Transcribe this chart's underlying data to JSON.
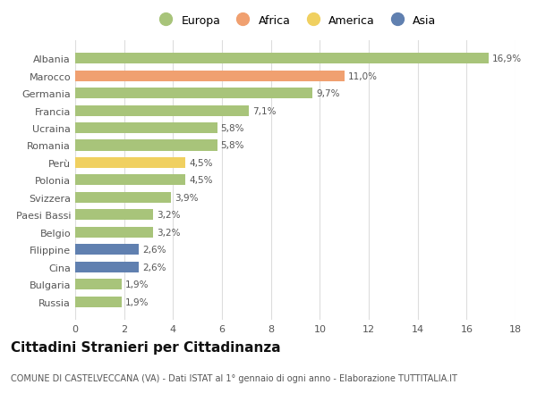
{
  "categories": [
    "Albania",
    "Marocco",
    "Germania",
    "Francia",
    "Ucraina",
    "Romania",
    "Perù",
    "Polonia",
    "Svizzera",
    "Paesi Bassi",
    "Belgio",
    "Filippine",
    "Cina",
    "Bulgaria",
    "Russia"
  ],
  "values": [
    16.9,
    11.0,
    9.7,
    7.1,
    5.8,
    5.8,
    4.5,
    4.5,
    3.9,
    3.2,
    3.2,
    2.6,
    2.6,
    1.9,
    1.9
  ],
  "labels": [
    "16,9%",
    "11,0%",
    "9,7%",
    "7,1%",
    "5,8%",
    "5,8%",
    "4,5%",
    "4,5%",
    "3,9%",
    "3,2%",
    "3,2%",
    "2,6%",
    "2,6%",
    "1,9%",
    "1,9%"
  ],
  "colors": [
    "#a8c47a",
    "#f0a070",
    "#a8c47a",
    "#a8c47a",
    "#a8c47a",
    "#a8c47a",
    "#f0d060",
    "#a8c47a",
    "#a8c47a",
    "#a8c47a",
    "#a8c47a",
    "#6080b0",
    "#6080b0",
    "#a8c47a",
    "#a8c47a"
  ],
  "legend_labels": [
    "Europa",
    "Africa",
    "America",
    "Asia"
  ],
  "legend_colors": [
    "#a8c47a",
    "#f0a070",
    "#f0d060",
    "#6080b0"
  ],
  "title": "Cittadini Stranieri per Cittadinanza",
  "subtitle": "COMUNE DI CASTELVECCANA (VA) - Dati ISTAT al 1° gennaio di ogni anno - Elaborazione TUTTITALIA.IT",
  "xlim": [
    0,
    18
  ],
  "xticks": [
    0,
    2,
    4,
    6,
    8,
    10,
    12,
    14,
    16,
    18
  ],
  "background_color": "#ffffff",
  "grid_color": "#dddddd",
  "bar_height": 0.62,
  "label_fontsize": 7.5,
  "tick_fontsize": 8,
  "title_fontsize": 11,
  "subtitle_fontsize": 7
}
